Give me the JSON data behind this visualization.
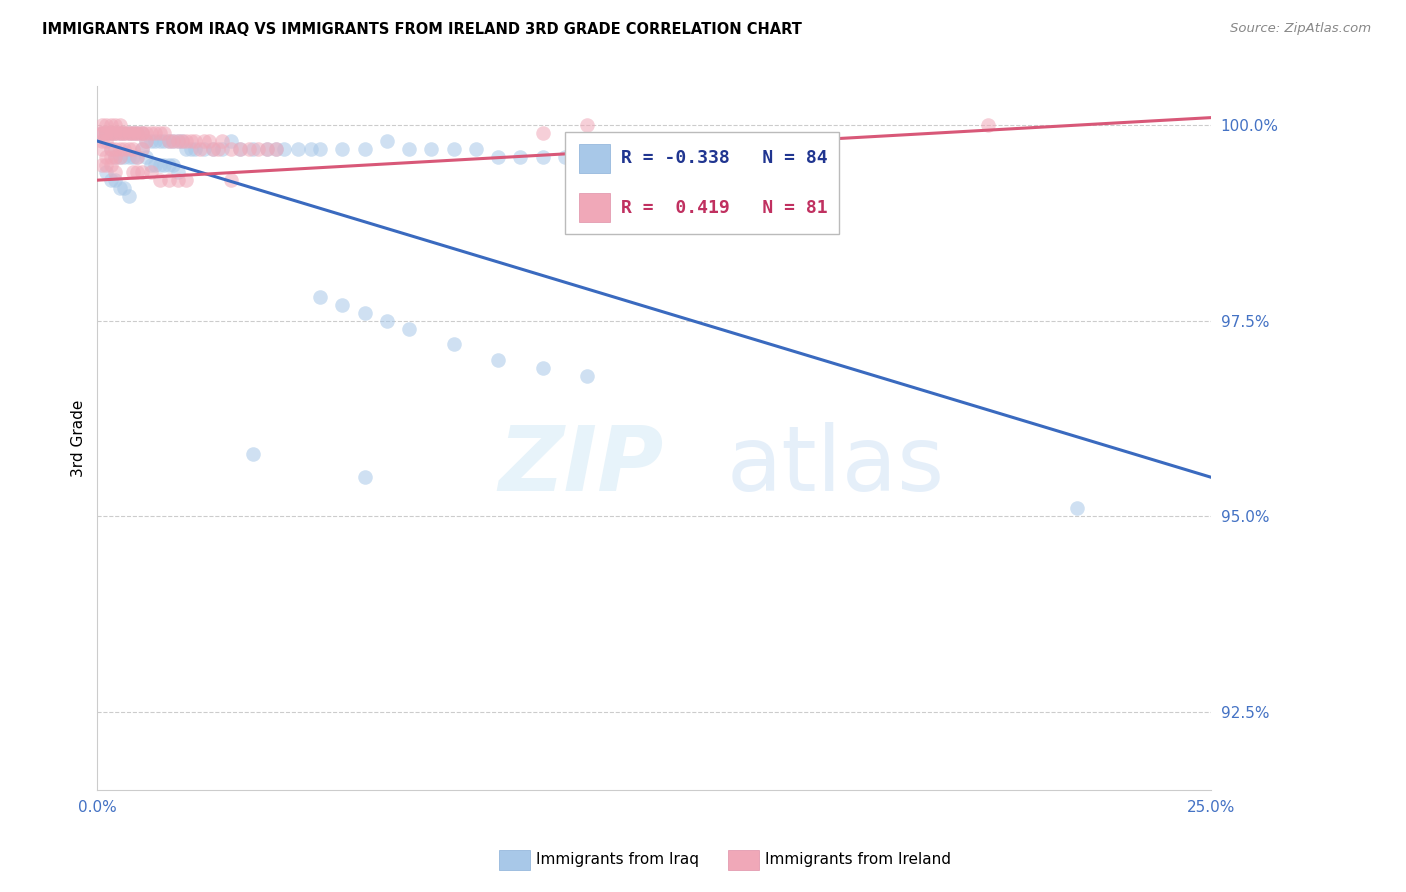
{
  "title": "IMMIGRANTS FROM IRAQ VS IMMIGRANTS FROM IRELAND 3RD GRADE CORRELATION CHART",
  "source": "Source: ZipAtlas.com",
  "ylabel": "3rd Grade",
  "xlim": [
    0.0,
    0.25
  ],
  "ylim": [
    0.915,
    1.005
  ],
  "xtick_positions": [
    0.0,
    0.05,
    0.1,
    0.15,
    0.2,
    0.25
  ],
  "xticklabels": [
    "0.0%",
    "",
    "",
    "",
    "",
    "25.0%"
  ],
  "ytick_positions": [
    0.925,
    0.95,
    0.975,
    1.0
  ],
  "yticklabels": [
    "92.5%",
    "95.0%",
    "97.5%",
    "100.0%"
  ],
  "iraq_color": "#a8c8e8",
  "ireland_color": "#f0a8b8",
  "iraq_line_color": "#3a6abf",
  "ireland_line_color": "#d85878",
  "iraq_R": -0.338,
  "iraq_N": 84,
  "ireland_R": 0.419,
  "ireland_N": 81,
  "legend_label_iraq": "Immigrants from Iraq",
  "legend_label_ireland": "Immigrants from Ireland",
  "iraq_line_x0": 0.0,
  "iraq_line_y0": 0.998,
  "iraq_line_x1": 0.25,
  "iraq_line_y1": 0.955,
  "ireland_line_x0": 0.0,
  "ireland_line_y0": 0.993,
  "ireland_line_x1": 0.25,
  "ireland_line_y1": 1.001,
  "iraq_x": [
    0.001,
    0.002,
    0.003,
    0.004,
    0.005,
    0.006,
    0.007,
    0.008,
    0.009,
    0.01,
    0.011,
    0.012,
    0.013,
    0.014,
    0.015,
    0.016,
    0.017,
    0.018,
    0.019,
    0.02,
    0.021,
    0.022,
    0.024,
    0.026,
    0.028,
    0.03,
    0.032,
    0.035,
    0.038,
    0.04,
    0.042,
    0.045,
    0.048,
    0.05,
    0.055,
    0.06,
    0.065,
    0.07,
    0.075,
    0.08,
    0.085,
    0.09,
    0.095,
    0.1,
    0.105,
    0.11,
    0.115,
    0.12,
    0.125,
    0.13,
    0.003,
    0.004,
    0.005,
    0.006,
    0.007,
    0.008,
    0.009,
    0.01,
    0.011,
    0.012,
    0.013,
    0.014,
    0.015,
    0.016,
    0.017,
    0.018,
    0.002,
    0.003,
    0.004,
    0.005,
    0.006,
    0.007,
    0.05,
    0.055,
    0.06,
    0.065,
    0.07,
    0.08,
    0.09,
    0.1,
    0.11,
    0.22,
    0.035,
    0.06
  ],
  "iraq_y": [
    0.999,
    0.999,
    0.999,
    0.999,
    0.999,
    0.999,
    0.999,
    0.999,
    0.999,
    0.999,
    0.998,
    0.998,
    0.998,
    0.998,
    0.998,
    0.998,
    0.998,
    0.998,
    0.998,
    0.997,
    0.997,
    0.997,
    0.997,
    0.997,
    0.997,
    0.998,
    0.997,
    0.997,
    0.997,
    0.997,
    0.997,
    0.997,
    0.997,
    0.997,
    0.997,
    0.997,
    0.998,
    0.997,
    0.997,
    0.997,
    0.997,
    0.996,
    0.996,
    0.996,
    0.996,
    0.996,
    0.996,
    0.996,
    0.996,
    0.996,
    0.997,
    0.996,
    0.996,
    0.996,
    0.996,
    0.996,
    0.996,
    0.997,
    0.996,
    0.995,
    0.995,
    0.995,
    0.995,
    0.995,
    0.995,
    0.994,
    0.994,
    0.993,
    0.993,
    0.992,
    0.992,
    0.991,
    0.978,
    0.977,
    0.976,
    0.975,
    0.974,
    0.972,
    0.97,
    0.969,
    0.968,
    0.951,
    0.958,
    0.955
  ],
  "ireland_x": [
    0.001,
    0.001,
    0.001,
    0.002,
    0.002,
    0.002,
    0.003,
    0.003,
    0.003,
    0.004,
    0.004,
    0.004,
    0.005,
    0.005,
    0.005,
    0.006,
    0.006,
    0.007,
    0.007,
    0.008,
    0.008,
    0.009,
    0.009,
    0.01,
    0.01,
    0.011,
    0.011,
    0.012,
    0.013,
    0.014,
    0.015,
    0.016,
    0.017,
    0.018,
    0.019,
    0.02,
    0.021,
    0.022,
    0.023,
    0.024,
    0.025,
    0.026,
    0.027,
    0.028,
    0.03,
    0.032,
    0.034,
    0.036,
    0.038,
    0.04,
    0.001,
    0.002,
    0.003,
    0.004,
    0.005,
    0.006,
    0.007,
    0.008,
    0.009,
    0.01,
    0.001,
    0.002,
    0.003,
    0.004,
    0.005,
    0.001,
    0.002,
    0.003,
    0.004,
    0.03,
    0.11,
    0.2,
    0.1,
    0.008,
    0.009,
    0.01,
    0.012,
    0.014,
    0.016,
    0.018,
    0.02
  ],
  "ireland_y": [
    1.0,
    0.999,
    0.999,
    1.0,
    0.999,
    0.999,
    1.0,
    0.999,
    0.999,
    1.0,
    0.999,
    0.999,
    1.0,
    0.999,
    0.999,
    0.999,
    0.999,
    0.999,
    0.999,
    0.999,
    0.999,
    0.999,
    0.999,
    0.999,
    0.999,
    0.999,
    0.998,
    0.999,
    0.999,
    0.999,
    0.999,
    0.998,
    0.998,
    0.998,
    0.998,
    0.998,
    0.998,
    0.998,
    0.997,
    0.998,
    0.998,
    0.997,
    0.997,
    0.998,
    0.997,
    0.997,
    0.997,
    0.997,
    0.997,
    0.997,
    0.998,
    0.998,
    0.997,
    0.997,
    0.997,
    0.997,
    0.997,
    0.997,
    0.996,
    0.997,
    0.997,
    0.996,
    0.996,
    0.996,
    0.996,
    0.995,
    0.995,
    0.995,
    0.994,
    0.993,
    1.0,
    1.0,
    0.999,
    0.994,
    0.994,
    0.994,
    0.994,
    0.993,
    0.993,
    0.993,
    0.993
  ]
}
